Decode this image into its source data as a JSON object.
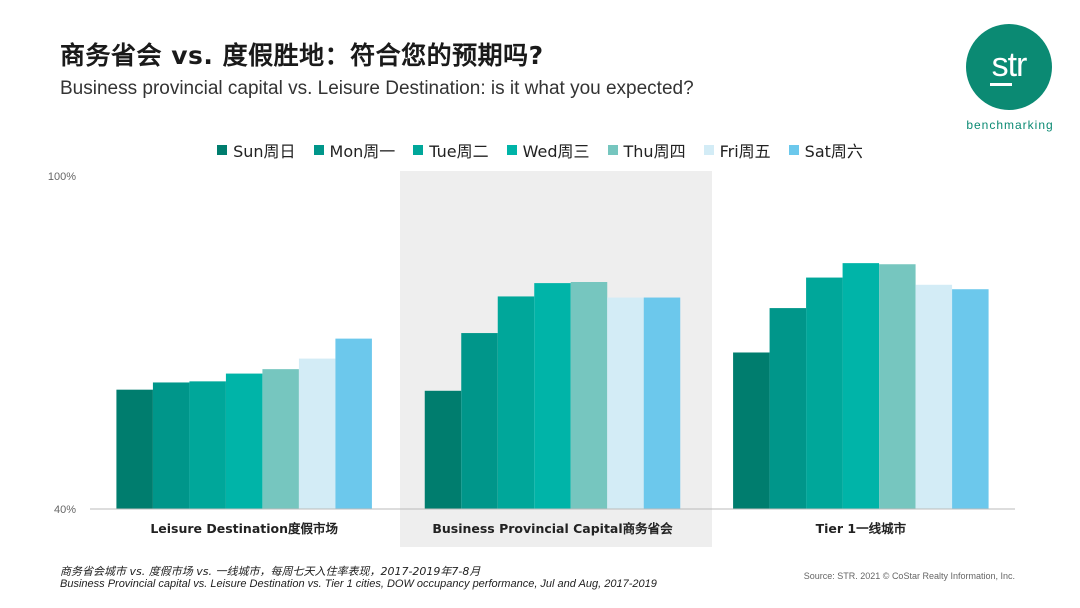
{
  "header": {
    "title_cn": "商务省会 vs. 度假胜地：符合您的预期吗?",
    "title_en": "Business provincial capital  vs. Leisure Destination: is it what you expected?"
  },
  "logo": {
    "text": "str",
    "subtitle": "benchmarking"
  },
  "chart_data": {
    "type": "bar",
    "title": "",
    "ylim": [
      40,
      100
    ],
    "ytick_labels": [
      "100%",
      "40%"
    ],
    "categories": [
      "Leisure Destination度假市场",
      "Business Provincial Capital商务省会",
      "Tier 1一线城市"
    ],
    "highlighted_category": "Business Provincial Capital商务省会",
    "legend_position": "top-center",
    "series": [
      {
        "name": "Sun周日",
        "color": "#007d6e",
        "values": [
          61.5,
          61.3,
          68.2
        ]
      },
      {
        "name": "Mon周一",
        "color": "#00968a",
        "values": [
          62.8,
          71.7,
          76.2
        ]
      },
      {
        "name": "Tue周二",
        "color": "#00a79a",
        "values": [
          63.0,
          78.3,
          81.7
        ]
      },
      {
        "name": "Wed周三",
        "color": "#00b4a8",
        "values": [
          64.4,
          80.7,
          84.3
        ]
      },
      {
        "name": "Thu周四",
        "color": "#76c6bf",
        "values": [
          65.2,
          80.9,
          84.1
        ]
      },
      {
        "name": "Fri周五",
        "color": "#d3ecf6",
        "values": [
          67.1,
          78.1,
          80.4
        ]
      },
      {
        "name": "Sat周六",
        "color": "#6cc8ec",
        "values": [
          70.7,
          78.1,
          79.6
        ]
      }
    ]
  },
  "footer": {
    "note_cn": "商务省会城市 vs. 度假市场 vs. 一线城市，每周七天入住率表现，2017-2019年7-8月",
    "note_en": "Business  Provincial  capital  vs. Leisure  Destination  vs. Tier  1  cities,  DOW occupancy performance,  Jul and Aug, 2017-2019",
    "source": "Source: STR. 2021 © CoStar Realty Information, Inc."
  }
}
